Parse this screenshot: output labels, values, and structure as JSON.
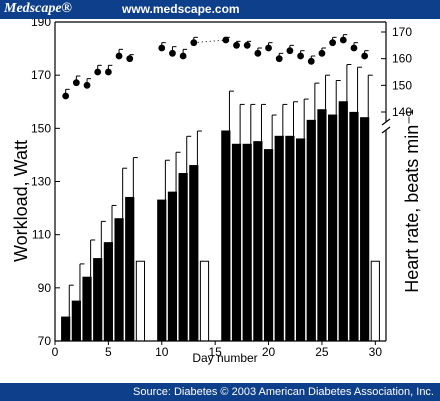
{
  "header": {
    "brand": "Medscape®",
    "site": "www.medscape.com"
  },
  "footer": {
    "source": "Source: Diabetes © 2003 American Diabetes Association, Inc."
  },
  "colors": {
    "banner": "#0e3f8a",
    "bars": "#000000",
    "control_bars": "#ffffff"
  },
  "chart_data": {
    "type": "bar",
    "xlabel": "Day number",
    "ylabel": "Workload, Watt",
    "y2label": "Heart rate, beats min⁻¹",
    "xlim": [
      0,
      31
    ],
    "ylim": [
      70,
      190
    ],
    "y2lim": [
      140,
      170
    ],
    "y2_axis_break": true,
    "x_ticks": [
      "0",
      "5",
      "10",
      "15",
      "20",
      "25",
      "30"
    ],
    "y_ticks": [
      "70",
      "90",
      "110",
      "130",
      "150",
      "170",
      "190"
    ],
    "y2_ticks": [
      "140",
      "150",
      "160",
      "170"
    ],
    "series": [
      {
        "kind": "bar",
        "fill": "black",
        "points": [
          {
            "x": 1,
            "y": 79,
            "err": 12
          },
          {
            "x": 2,
            "y": 85,
            "err": 14
          },
          {
            "x": 3,
            "y": 94,
            "err": 14
          },
          {
            "x": 4,
            "y": 101,
            "err": 14
          },
          {
            "x": 5,
            "y": 107,
            "err": 14
          },
          {
            "x": 6,
            "y": 116,
            "err": 19
          },
          {
            "x": 7,
            "y": 124,
            "err": 15
          },
          {
            "x": 10,
            "y": 123,
            "err": 15
          },
          {
            "x": 11,
            "y": 126,
            "err": 15
          },
          {
            "x": 12,
            "y": 133,
            "err": 14
          },
          {
            "x": 13,
            "y": 136,
            "err": 13
          },
          {
            "x": 16,
            "y": 149,
            "err": 15
          },
          {
            "x": 17,
            "y": 144,
            "err": 15
          },
          {
            "x": 18,
            "y": 144,
            "err": 15
          },
          {
            "x": 19,
            "y": 145,
            "err": 14
          },
          {
            "x": 20,
            "y": 142,
            "err": 13
          },
          {
            "x": 21,
            "y": 147,
            "err": 12
          },
          {
            "x": 22,
            "y": 147,
            "err": 13
          },
          {
            "x": 23,
            "y": 146,
            "err": 15
          },
          {
            "x": 24,
            "y": 153,
            "err": 14
          },
          {
            "x": 25,
            "y": 157,
            "err": 13
          },
          {
            "x": 26,
            "y": 155,
            "err": 13
          },
          {
            "x": 27,
            "y": 160,
            "err": 14
          },
          {
            "x": 28,
            "y": 156,
            "err": 17
          },
          {
            "x": 29,
            "y": 154,
            "err": 16
          }
        ]
      },
      {
        "kind": "bar",
        "fill": "white",
        "points": [
          {
            "x": 8,
            "y": 100
          },
          {
            "x": 14,
            "y": 100
          },
          {
            "x": 30,
            "y": 100
          }
        ]
      },
      {
        "kind": "scatter",
        "axis": "right",
        "marker": "filled-circle",
        "points": [
          {
            "x": 1,
            "y": 146,
            "err": 2.5
          },
          {
            "x": 2,
            "y": 151,
            "err": 2.5
          },
          {
            "x": 3,
            "y": 150,
            "err": 2.5
          },
          {
            "x": 4,
            "y": 155,
            "err": 2.5
          },
          {
            "x": 5,
            "y": 155,
            "err": 2.5
          },
          {
            "x": 6,
            "y": 161,
            "err": 2.5
          },
          {
            "x": 7,
            "y": 160,
            "err": 1.5
          },
          {
            "x": 10,
            "y": 164,
            "err": 2
          },
          {
            "x": 11,
            "y": 162,
            "err": 2.5
          },
          {
            "x": 12,
            "y": 161,
            "err": 2.5
          },
          {
            "x": 13,
            "y": 166,
            "err": 2
          },
          {
            "x": 16,
            "y": 167,
            "err": 1
          },
          {
            "x": 17,
            "y": 165,
            "err": 1.5
          },
          {
            "x": 18,
            "y": 165,
            "err": 1.5
          },
          {
            "x": 19,
            "y": 162,
            "err": 2
          },
          {
            "x": 20,
            "y": 164,
            "err": 2
          },
          {
            "x": 21,
            "y": 160,
            "err": 2
          },
          {
            "x": 22,
            "y": 163,
            "err": 2
          },
          {
            "x": 23,
            "y": 161,
            "err": 2
          },
          {
            "x": 24,
            "y": 159,
            "err": 2
          },
          {
            "x": 25,
            "y": 162,
            "err": 2
          },
          {
            "x": 26,
            "y": 166,
            "err": 2
          },
          {
            "x": 27,
            "y": 167,
            "err": 2
          },
          {
            "x": 28,
            "y": 164,
            "err": 2
          },
          {
            "x": 29,
            "y": 161,
            "err": 2
          }
        ]
      }
    ]
  }
}
